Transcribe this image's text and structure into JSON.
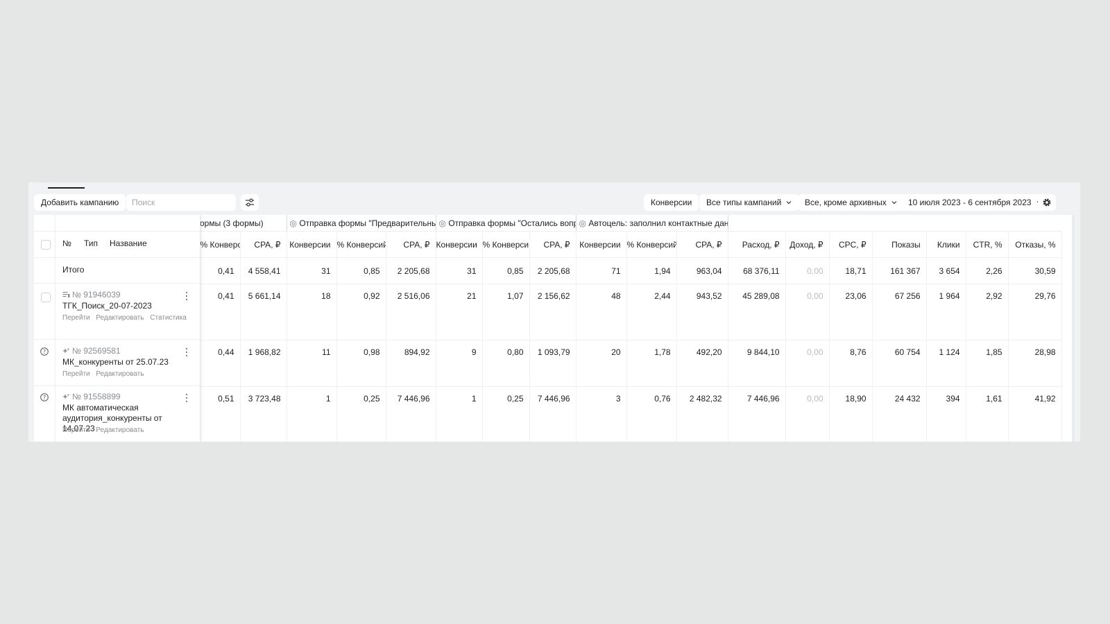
{
  "toolbar": {
    "add_campaign": "Добавить кампанию",
    "search_placeholder": "Поиск",
    "conversions": "Конверсии",
    "campaign_types": "Все типы кампаний",
    "archive_filter": "Все, кроме архивных",
    "date_range": "10 июля 2023 - 6 сентября 2023"
  },
  "columns": {
    "number": "№",
    "type": "Тип",
    "name": "Название"
  },
  "groups": {
    "g1": "ормы (3 формы)",
    "g2": "Отправка формы \"Предварительный р",
    "g3": "Отправка формы \"Остались вопрос",
    "g4": "Автоцель: заполнил контактные данны"
  },
  "headers": [
    "% Конверси",
    "CPA, ₽",
    "Конверсии",
    "% Конверсий",
    "CPA, ₽",
    "Конверсии",
    "% Конверси",
    "CPA, ₽",
    "Конверсии",
    "% Конверсий",
    "CPA, ₽",
    "Расход, ₽",
    "Доход, ₽",
    "CPC, ₽",
    "Показы",
    "Клики",
    "CTR, %",
    "Отказы, %"
  ],
  "total": {
    "label": "Итого",
    "values": [
      "0,41",
      "4 558,41",
      "31",
      "0,85",
      "2 205,68",
      "31",
      "0,85",
      "2 205,68",
      "71",
      "1,94",
      "963,04",
      "68 376,11",
      "0,00",
      "18,71",
      "161 367",
      "3 654",
      "2,26",
      "30,59"
    ]
  },
  "rows": [
    {
      "id": "№ 91946039",
      "name": "ТГК_Поиск_20-07-2023",
      "links": [
        "Перейти",
        "Редактировать",
        "Статистика"
      ],
      "values": [
        "0,41",
        "5 661,14",
        "18",
        "0,92",
        "2 516,06",
        "21",
        "1,07",
        "2 156,62",
        "48",
        "2,44",
        "943,52",
        "45 289,08",
        "0,00",
        "23,06",
        "67 256",
        "1 964",
        "2,92",
        "29,76"
      ]
    },
    {
      "id": "№ 92569581",
      "name": "МК_конкуренты от 25.07.23",
      "links": [
        "Перейти",
        "Редактировать"
      ],
      "values": [
        "0,44",
        "1 968,82",
        "11",
        "0,98",
        "894,92",
        "9",
        "0,80",
        "1 093,79",
        "20",
        "1,78",
        "492,20",
        "9 844,10",
        "0,00",
        "8,76",
        "60 754",
        "1 124",
        "1,85",
        "28,98"
      ]
    },
    {
      "id": "№ 91558899",
      "name": "МК автоматическая аудитория_конкуренты от 14.07.23",
      "links": [
        "Перейти",
        "Редактировать"
      ],
      "values": [
        "0,51",
        "3 723,48",
        "1",
        "0,25",
        "7 446,96",
        "1",
        "0,25",
        "7 446,96",
        "3",
        "0,76",
        "2 482,32",
        "7 446,96",
        "0,00",
        "18,90",
        "24 432",
        "394",
        "1,61",
        "41,92"
      ]
    }
  ]
}
